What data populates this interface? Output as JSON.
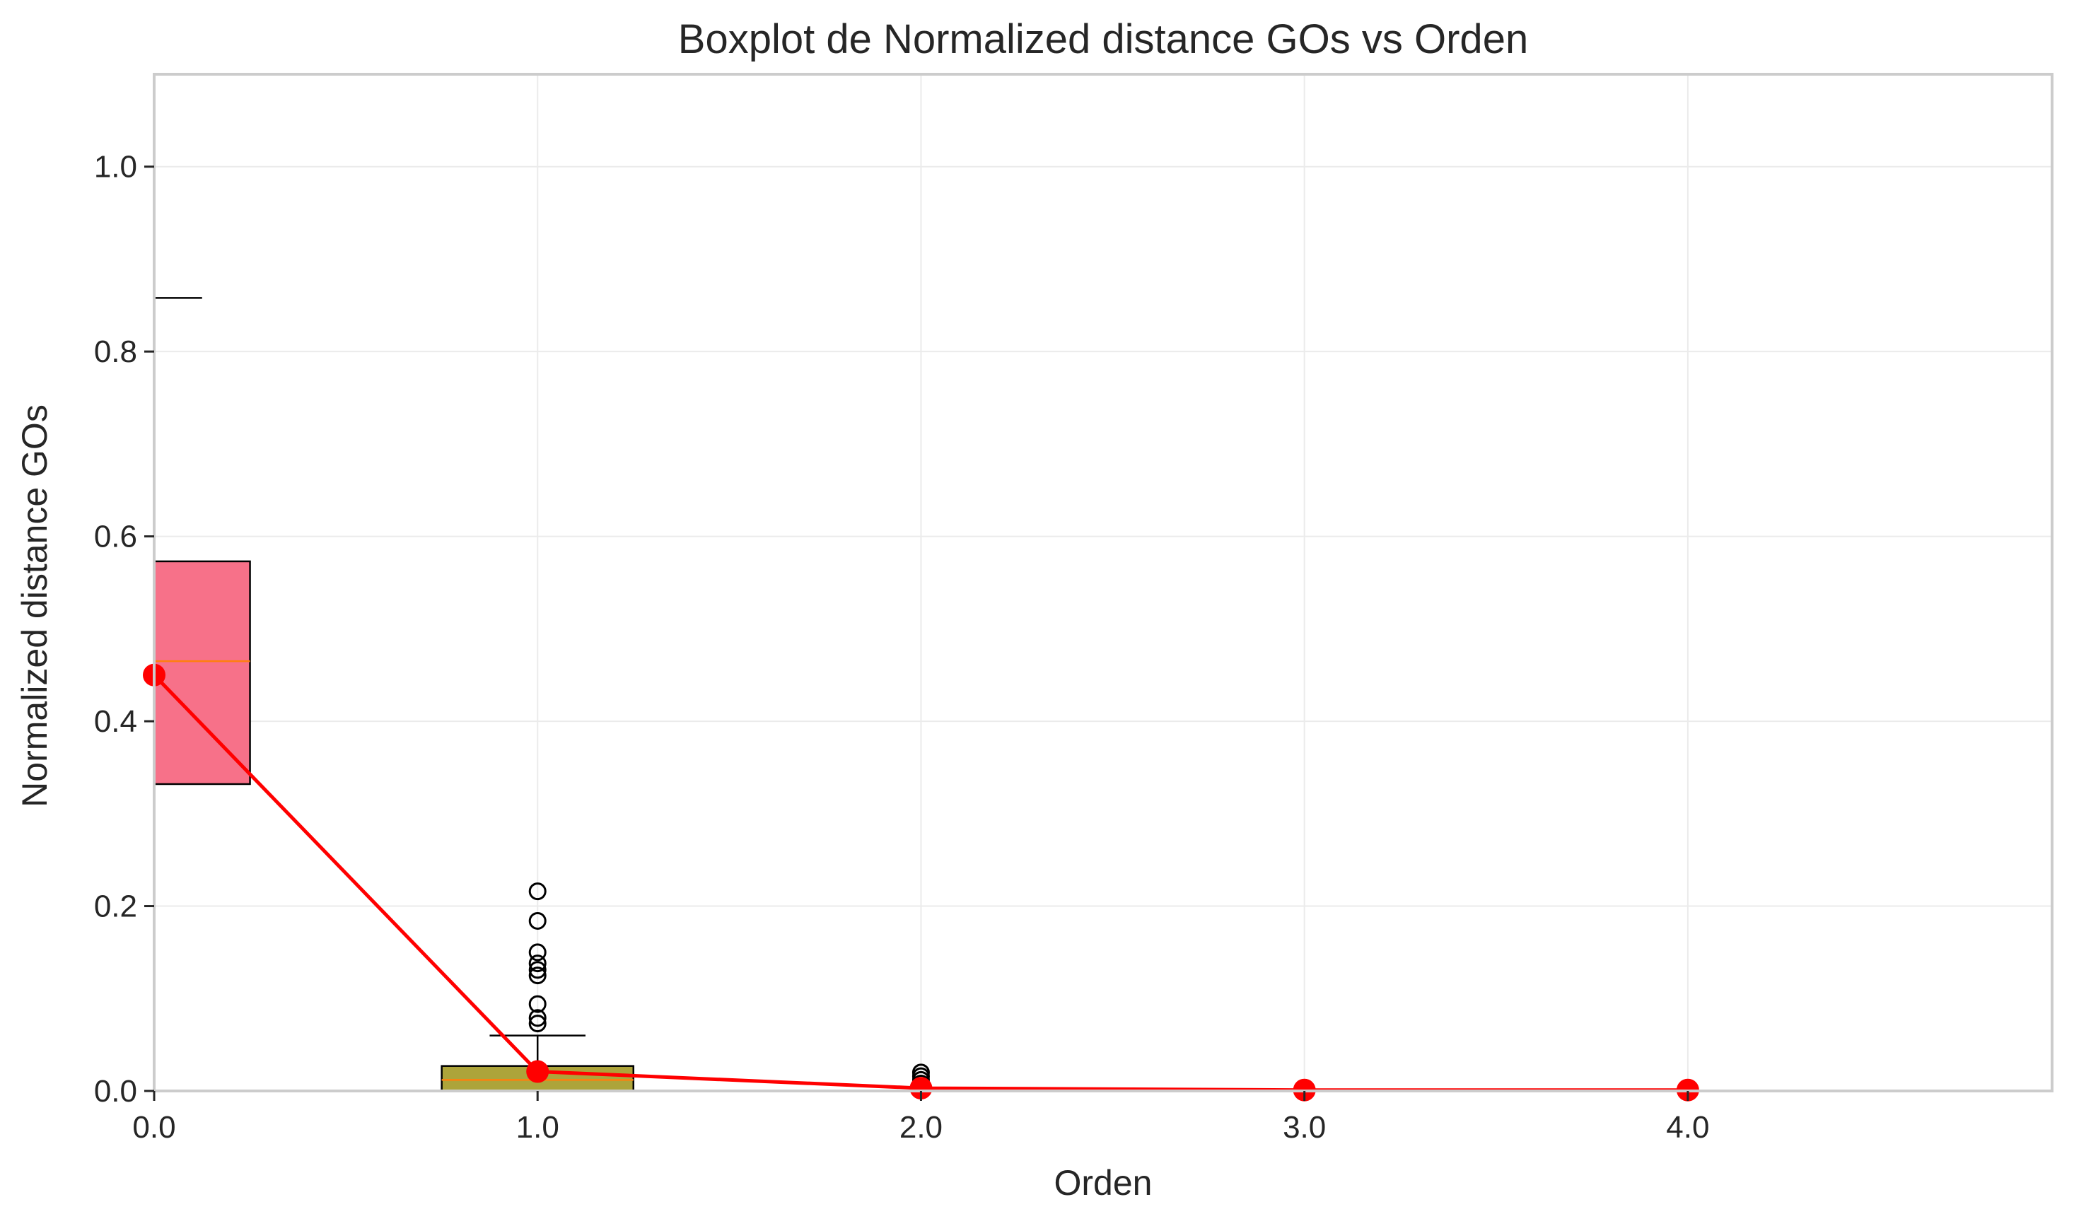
{
  "chart_data": {
    "type": "boxplot",
    "title": "Boxplot de Normalized distance GOs vs Orden",
    "xlabel": "Orden",
    "ylabel": "Normalized distance GOs",
    "xlim": [
      0.0,
      4.95
    ],
    "ylim": [
      0.0,
      1.1
    ],
    "x_ticks": [
      0,
      1,
      2,
      3,
      4
    ],
    "x_tick_labels": [
      "0.0",
      "1.0",
      "2.0",
      "3.0",
      "4.0"
    ],
    "y_ticks": [
      0.0,
      0.2,
      0.4,
      0.6,
      0.8,
      1.0
    ],
    "y_tick_labels": [
      "0.0",
      "0.2",
      "0.4",
      "0.6",
      "0.8",
      "1.0"
    ],
    "grid": true,
    "legend": "none",
    "boxes": [
      {
        "x": 0,
        "q1": 0.332,
        "median": 0.465,
        "q3": 0.573,
        "whisker_low": 0.0,
        "whisker_high": 0.858,
        "color": "#f77189",
        "median_color": "#ff7f0e",
        "outliers": []
      },
      {
        "x": 1,
        "q1": 0.0,
        "median": 0.012,
        "q3": 0.027,
        "whisker_low": 0.0,
        "whisker_high": 0.06,
        "color": "#ada43a",
        "median_color": "#ff7f0e",
        "outliers": [
          0.216,
          0.184,
          0.15,
          0.138,
          0.131,
          0.125,
          0.094,
          0.079,
          0.073
        ]
      },
      {
        "x": 2,
        "q1": 0.0,
        "median": 0.0,
        "q3": 0.0,
        "whisker_low": 0.0,
        "whisker_high": 0.0,
        "color": "#4bae96",
        "median_color": "#ff7f0e",
        "outliers": [
          0.02,
          0.016,
          0.012,
          0.008
        ]
      },
      {
        "x": 3,
        "q1": 0.0,
        "median": 0.0,
        "q3": 0.0,
        "whisker_low": 0.0,
        "whisker_high": 0.0,
        "color": "#5fa2d8",
        "median_color": "#ff7f0e",
        "outliers": []
      },
      {
        "x": 4,
        "q1": 0.0,
        "median": 0.0,
        "q3": 0.0,
        "whisker_low": 0.0,
        "whisker_high": 0.0,
        "color": "#c78ee0",
        "median_color": "#ff7f0e",
        "outliers": []
      }
    ],
    "mean_line": {
      "color": "#ff0000",
      "x": [
        0,
        1,
        2,
        3,
        4
      ],
      "y": [
        0.45,
        0.021,
        0.003,
        0.001,
        0.001
      ]
    }
  }
}
